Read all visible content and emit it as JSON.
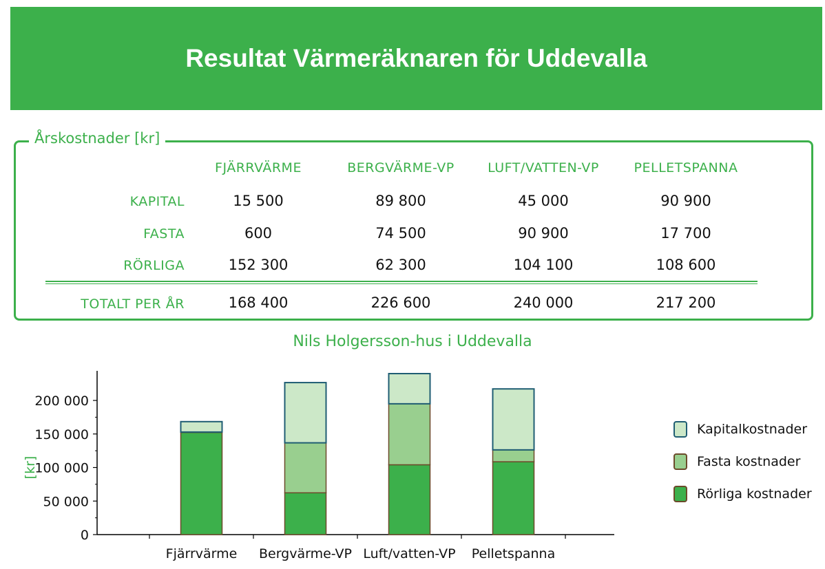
{
  "header": {
    "title": "Resultat Värmeräknaren för Uddevalla"
  },
  "costs": {
    "legend": "Årskostnader  [kr]",
    "columns": [
      "FJÄRRVÄRME",
      "BERGVÄRME-VP",
      "LUFT/VATTEN-VP",
      "PELLETSPANNA"
    ],
    "rows": [
      {
        "label": "KAPITAL",
        "values": [
          "15 500",
          "89 800",
          "45 000",
          "90 900"
        ]
      },
      {
        "label": "FASTA",
        "values": [
          "600",
          "74 500",
          "90 900",
          "17 700"
        ]
      },
      {
        "label": "RÖRLIGA",
        "values": [
          "152 300",
          "62 300",
          "104 100",
          "108 600"
        ]
      }
    ],
    "total": {
      "label": "TOTALT PER ÅR",
      "values": [
        "168 400",
        "226 600",
        "240 000",
        "217 200"
      ]
    }
  },
  "chart_data": {
    "type": "bar",
    "stacked": true,
    "title": "Nils Holgersson-hus i Uddevalla",
    "ylabel": "[kr]",
    "xlabel": "",
    "categories": [
      "Fjärrvärme",
      "Bergvärme-VP",
      "Luft/vatten-VP",
      "Pelletspanna"
    ],
    "ylim": [
      0,
      240000
    ],
    "yticks": [
      0,
      50000,
      100000,
      150000,
      200000
    ],
    "ytick_labels": [
      "0",
      "50 000",
      "100 000",
      "150 000",
      "200 000"
    ],
    "series": [
      {
        "name": "Rörliga kostnader",
        "values": [
          152300,
          62300,
          104100,
          108600
        ],
        "color": "#3cb04b"
      },
      {
        "name": "Fasta kostnader",
        "values": [
          600,
          74500,
          90900,
          17700
        ],
        "color": "#99cf8f"
      },
      {
        "name": "Kapitalkostnader",
        "values": [
          15500,
          89800,
          45000,
          90900
        ],
        "color": "#cce8c8"
      }
    ],
    "legend": [
      "Kapitalkostnader",
      "Fasta kostnader",
      "Rörliga kostnader"
    ],
    "legend_position": "right",
    "grid": false
  },
  "colors": {
    "accent": "#3cb04b",
    "bar_outline": "#6b4a2a",
    "top_outline": "#1f5d73"
  }
}
